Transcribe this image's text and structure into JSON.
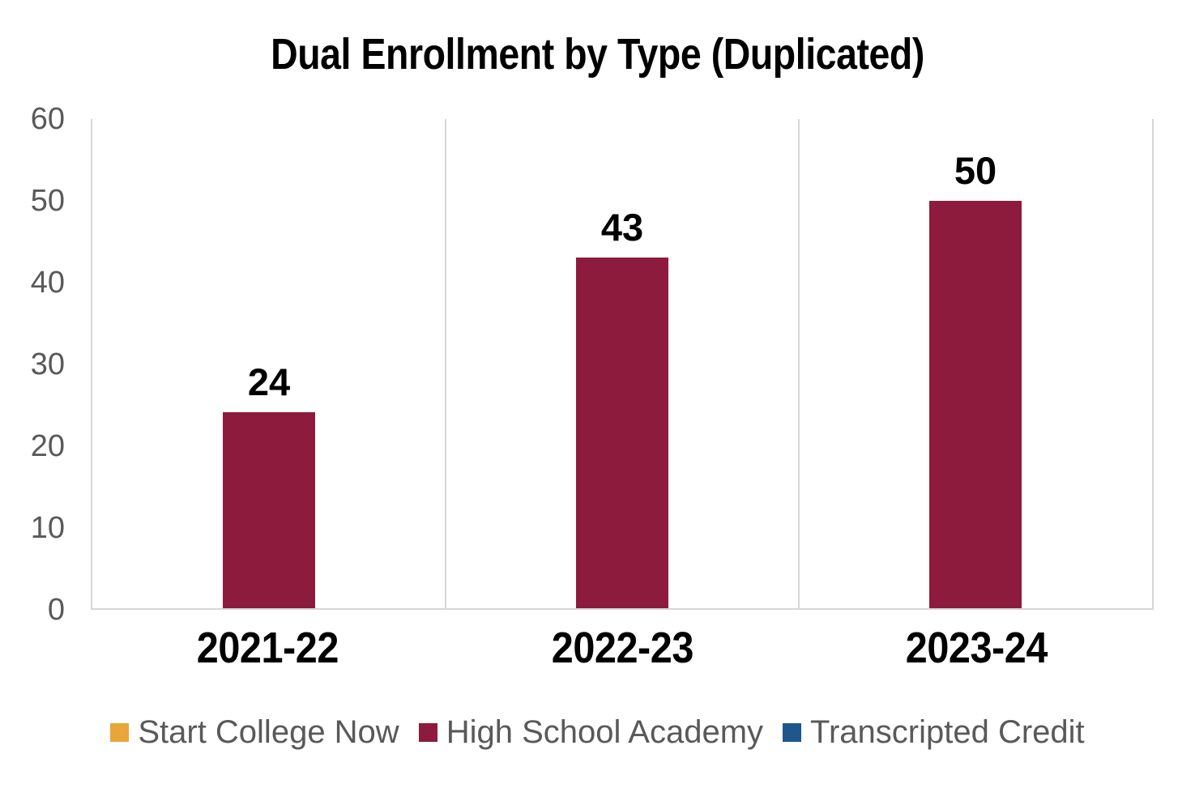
{
  "chart_data": {
    "type": "bar",
    "title": "Dual Enrollment by Type (Duplicated)",
    "categories": [
      "2021-22",
      "2022-23",
      "2023-24"
    ],
    "series": [
      {
        "name": "Start College Now",
        "color": "#E8A63A",
        "values": [
          0,
          0,
          0
        ]
      },
      {
        "name": "High School Academy",
        "color": "#8D1B3D",
        "values": [
          24,
          43,
          50
        ]
      },
      {
        "name": "Transcripted Credit",
        "color": "#1F578C",
        "values": [
          0,
          0,
          0
        ]
      }
    ],
    "data_labels": [
      "24",
      "43",
      "50"
    ],
    "xlabel": "",
    "ylabel": "",
    "ylim": [
      0,
      60
    ],
    "yticks": [
      "0",
      "10",
      "20",
      "30",
      "40",
      "50",
      "60"
    ],
    "grid": "vertical category separator lines only, no horizontal gridlines",
    "legend_position": "bottom",
    "colors": {
      "axis_line": "#D6D6D6",
      "tick_text": "#595959",
      "legend_text": "#595959",
      "title_text": "#000000",
      "data_label_text": "#000000"
    }
  }
}
